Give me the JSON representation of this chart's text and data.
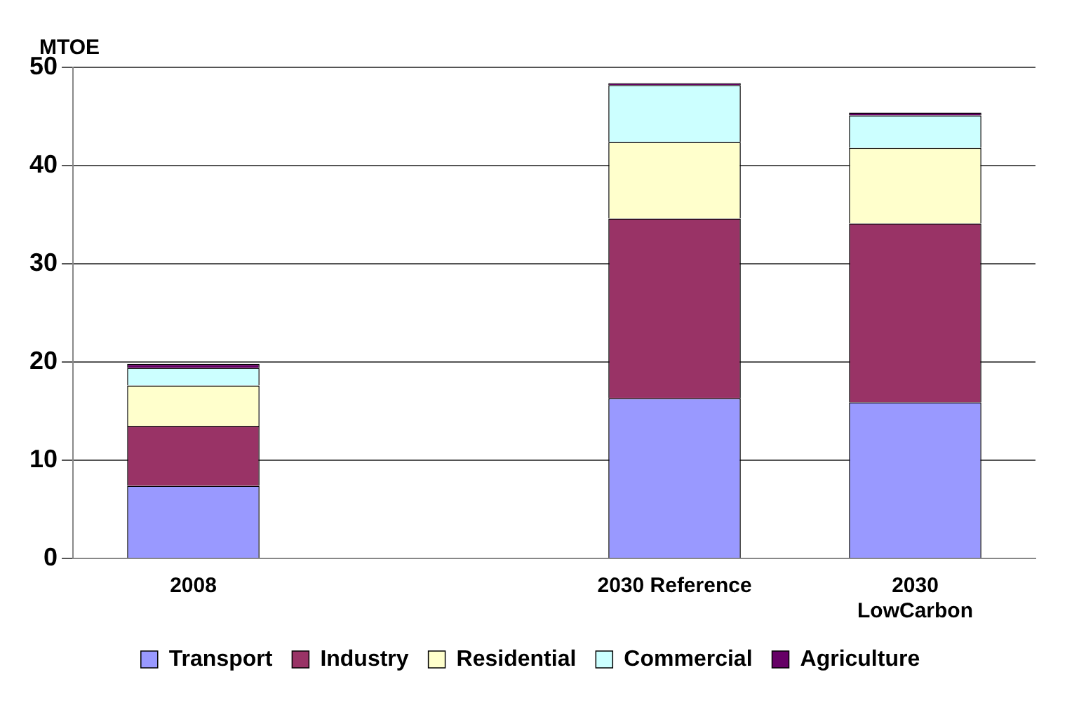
{
  "chart_data": {
    "type": "bar",
    "stacked": true,
    "ylabel": "MTOE",
    "categories": [
      "2008",
      null,
      "2030 Reference",
      "2030\nLowCarbon"
    ],
    "series": [
      {
        "name": "Transport",
        "color": "#9999ff",
        "values": [
          7.4,
          null,
          16.3,
          15.9
        ]
      },
      {
        "name": "Industry",
        "color": "#993366",
        "values": [
          6.1,
          null,
          18.3,
          18.2
        ]
      },
      {
        "name": "Residential",
        "color": "#ffffcc",
        "values": [
          4.1,
          null,
          7.8,
          7.7
        ]
      },
      {
        "name": "Commercial",
        "color": "#ccffff",
        "values": [
          1.8,
          null,
          5.8,
          3.3
        ]
      },
      {
        "name": "Agriculture",
        "color": "#660066",
        "values": [
          0.4,
          null,
          0.2,
          0.3
        ]
      }
    ],
    "ylim": [
      0,
      50
    ],
    "yticks": [
      0,
      10,
      20,
      30,
      40,
      50
    ],
    "grid": "y",
    "legend": "bottom"
  }
}
